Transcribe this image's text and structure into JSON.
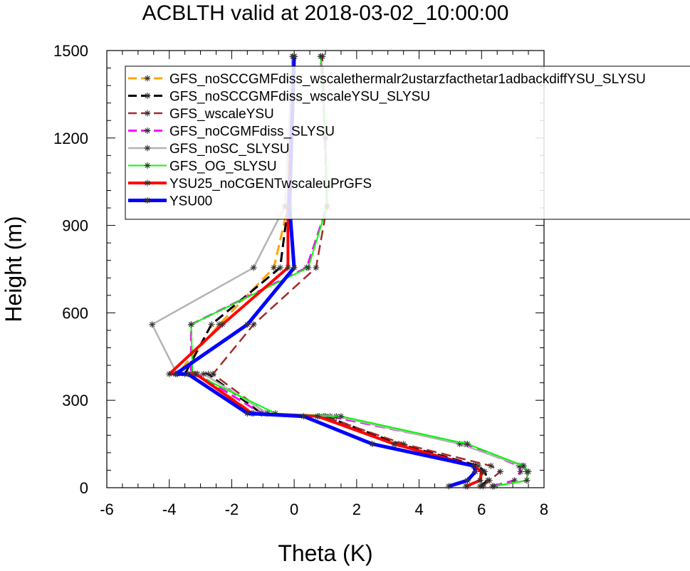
{
  "chart_data": {
    "type": "line",
    "title": "ACBLTH valid at 2018-03-02_10:00:00",
    "xlabel": "Theta (K)",
    "ylabel": "Height (m)",
    "xlim": [
      -6,
      8
    ],
    "ylim": [
      0,
      1500
    ],
    "xticks": [
      -6,
      -4,
      -2,
      0,
      2,
      4,
      6,
      8
    ],
    "yticks": [
      0,
      300,
      600,
      900,
      1200,
      1500
    ],
    "grid": false,
    "legend_position": "top-right (inside plot, overflowing right edge)",
    "series": [
      {
        "name": "GFS_noSCCGMFdiss_wscalethermalr2ustarzfacthetar1adbackdiffYSU_SLYSU",
        "color": "#FFA500",
        "dash": "dashed",
        "width": 3,
        "x": [
          5.55,
          5.95,
          6.05,
          5.8,
          3.25,
          0.8,
          -1.3,
          -3.1,
          -3.75,
          -2.4,
          -0.65,
          -0.2,
          0.0,
          0.0
        ],
        "y": [
          5,
          25,
          55,
          75,
          150,
          245,
          255,
          390,
          390,
          560,
          755,
          965,
          1480,
          1480
        ]
      },
      {
        "name": "GFS_noSCCGMFdiss_wscaleYSU_SLYSU",
        "color": "#000000",
        "dash": "dashed",
        "width": 3,
        "x": [
          5.95,
          6.2,
          6.1,
          5.9,
          3.35,
          1.0,
          -1.05,
          -2.75,
          -3.5,
          -2.65,
          -0.45,
          -0.2,
          -0.05,
          0.0
        ],
        "y": [
          5,
          25,
          55,
          75,
          150,
          245,
          255,
          390,
          390,
          560,
          755,
          965,
          1480,
          1480
        ]
      },
      {
        "name": "GFS_wscaleYSU",
        "color": "#A52A2A",
        "dash": "dashed",
        "width": 2.5,
        "x": [
          6.05,
          6.25,
          6.6,
          6.3,
          3.5,
          0.95,
          -0.9,
          -2.6,
          -2.6,
          -1.3,
          0.7,
          1.05,
          0.9,
          0.9
        ],
        "y": [
          5,
          25,
          55,
          75,
          150,
          245,
          255,
          390,
          390,
          560,
          755,
          965,
          1480,
          1480
        ]
      },
      {
        "name": "GFS_noCGMFdiss_SLYSU",
        "color": "#FF00FF",
        "dash": "dashed",
        "width": 3,
        "x": [
          6.35,
          7.05,
          7.25,
          7.2,
          5.45,
          1.15,
          -1.05,
          -3.1,
          -3.3,
          -3.3,
          0.4,
          1.05,
          1.0,
          0.85
        ],
        "y": [
          5,
          25,
          55,
          75,
          150,
          245,
          255,
          390,
          390,
          560,
          755,
          965,
          1200,
          1480
        ]
      },
      {
        "name": "GFS_noSC_SLYSU",
        "color": "#B4B4B4",
        "dash": "solid",
        "width": 2.5,
        "x": [
          6.4,
          7.45,
          7.45,
          7.3,
          5.3,
          1.35,
          -0.85,
          -2.9,
          -3.75,
          -4.55,
          -1.3,
          -0.3,
          -0.05,
          0.0
        ],
        "y": [
          5,
          25,
          55,
          75,
          150,
          245,
          255,
          390,
          390,
          560,
          755,
          965,
          1480,
          1480
        ]
      },
      {
        "name": "GFS_OG_SLYSU",
        "color": "#00FF00",
        "dash": "solid",
        "width": 2,
        "x": [
          6.4,
          7.45,
          7.5,
          7.35,
          5.55,
          1.5,
          -0.6,
          -3.2,
          -3.25,
          -3.3,
          0.45,
          1.05,
          1.0,
          0.85
        ],
        "y": [
          5,
          25,
          55,
          75,
          150,
          245,
          255,
          390,
          390,
          560,
          755,
          965,
          1200,
          1480
        ]
      },
      {
        "name": "YSU25_noCGENTwscaleuPrGFS",
        "color": "#FF0000",
        "dash": "solid",
        "width": 4,
        "x": [
          5.5,
          5.95,
          6.0,
          5.75,
          3.2,
          0.75,
          -1.35,
          -3.15,
          -4.0,
          -2.3,
          -0.2,
          -0.2,
          0.0,
          0.0
        ],
        "y": [
          5,
          25,
          55,
          75,
          150,
          245,
          255,
          390,
          390,
          560,
          755,
          965,
          1480,
          1480
        ]
      },
      {
        "name": "YSU00",
        "color": "#0000FF",
        "dash": "solid",
        "width": 5,
        "x": [
          4.95,
          5.55,
          5.8,
          5.75,
          2.5,
          0.3,
          -1.5,
          -3.4,
          -3.8,
          -1.5,
          0.0,
          -0.15,
          0.0,
          0.0
        ],
        "y": [
          5,
          25,
          55,
          75,
          150,
          245,
          255,
          390,
          390,
          560,
          755,
          965,
          1480,
          1480
        ]
      }
    ]
  }
}
